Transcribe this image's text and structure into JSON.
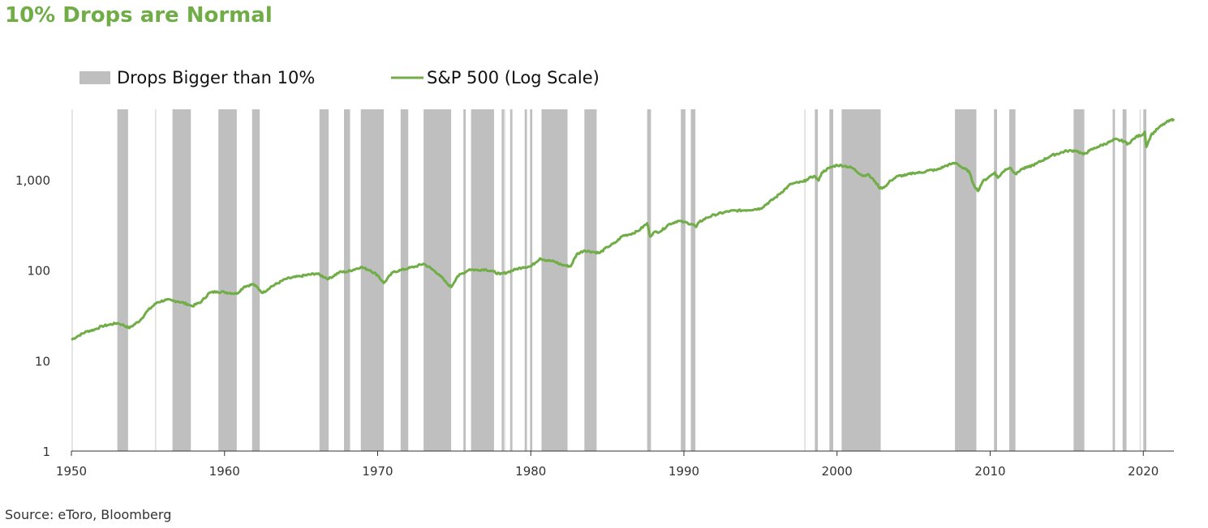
{
  "colors": {
    "title": "#70ad47",
    "line": "#70ad47",
    "band": "#bfbfbf",
    "axis": "#333333"
  },
  "chart_data": {
    "type": "line",
    "title": "10% Drops are Normal",
    "source": "Source: eToro, Bloomberg",
    "y_scale": "log",
    "xlim": [
      1950,
      2022
    ],
    "ylim": [
      1,
      6000
    ],
    "x_ticks": [
      1950,
      1960,
      1970,
      1980,
      1990,
      2000,
      2010,
      2020
    ],
    "x_tick_labels": [
      "1950",
      "1960",
      "1970",
      "1980",
      "1990",
      "2000",
      "2010",
      "2020"
    ],
    "y_ticks": [
      1,
      10,
      100,
      1000
    ],
    "y_tick_labels": [
      "1",
      "10",
      "100",
      "1,000"
    ],
    "grid": false,
    "legend_placement": "top-left",
    "legend": [
      {
        "label": "Drops Bigger than 10%",
        "kind": "band"
      },
      {
        "label": "S&P 500 (Log Scale)",
        "kind": "line"
      }
    ],
    "series": [
      {
        "name": "S&P 500 (Log Scale)",
        "x": [
          1950.0,
          1950.5,
          1951.0,
          1951.5,
          1952.0,
          1952.5,
          1953.0,
          1953.3,
          1953.8,
          1954.5,
          1955.0,
          1955.6,
          1956.2,
          1956.6,
          1957.0,
          1957.6,
          1957.9,
          1958.5,
          1959.0,
          1959.5,
          1960.0,
          1960.8,
          1961.3,
          1961.9,
          1962.5,
          1963.0,
          1964.0,
          1965.0,
          1966.0,
          1966.8,
          1967.5,
          1968.0,
          1968.9,
          1969.5,
          1970.0,
          1970.4,
          1971.0,
          1971.5,
          1972.0,
          1972.5,
          1973.0,
          1973.5,
          1974.0,
          1974.5,
          1974.8,
          1975.2,
          1976.0,
          1976.5,
          1977.0,
          1977.5,
          1978.0,
          1978.5,
          1979.0,
          1979.5,
          1980.0,
          1980.6,
          1980.9,
          1981.5,
          1982.0,
          1982.6,
          1983.0,
          1983.5,
          1984.0,
          1984.5,
          1985.0,
          1985.5,
          1986.0,
          1986.5,
          1987.0,
          1987.6,
          1987.8,
          1988.0,
          1988.5,
          1989.0,
          1989.6,
          1990.0,
          1990.6,
          1990.8,
          1991.0,
          1991.5,
          1992.0,
          1993.0,
          1994.0,
          1995.0,
          1996.0,
          1997.0,
          1997.8,
          1998.0,
          1998.5,
          1998.8,
          1999.0,
          1999.5,
          2000.0,
          2000.5,
          2001.0,
          2001.7,
          2002.0,
          2002.5,
          2002.8,
          2003.2,
          2003.5,
          2004.0,
          2004.5,
          2005.0,
          2005.5,
          2006.0,
          2006.5,
          2007.0,
          2007.5,
          2007.8,
          2008.2,
          2008.6,
          2008.9,
          2009.2,
          2009.5,
          2010.0,
          2010.3,
          2010.5,
          2011.0,
          2011.3,
          2011.7,
          2012.0,
          2012.5,
          2013.0,
          2014.0,
          2015.0,
          2015.6,
          2016.1,
          2016.5,
          2017.0,
          2018.0,
          2018.1,
          2018.8,
          2018.95,
          2019.5,
          2020.0,
          2020.1,
          2020.2,
          2020.5,
          2021.0,
          2021.5,
          2022.0
        ],
        "values": [
          17,
          19,
          21,
          22,
          24,
          25,
          26,
          25,
          23,
          28,
          36,
          44,
          47,
          46,
          45,
          42,
          40,
          45,
          56,
          58,
          57,
          55,
          66,
          70,
          56,
          65,
          80,
          86,
          92,
          80,
          95,
          96,
          108,
          100,
          88,
          72,
          95,
          100,
          105,
          110,
          118,
          104,
          90,
          72,
          65,
          85,
          102,
          100,
          102,
          97,
          90,
          95,
          102,
          108,
          110,
          135,
          130,
          125,
          115,
          110,
          150,
          165,
          160,
          155,
          180,
          200,
          240,
          250,
          270,
          330,
          235,
          260,
          270,
          320,
          350,
          340,
          320,
          300,
          340,
          380,
          410,
          450,
          460,
          480,
          640,
          900,
          950,
          1000,
          1100,
          980,
          1200,
          1350,
          1450,
          1420,
          1350,
          1100,
          1150,
          950,
          800,
          850,
          980,
          1100,
          1120,
          1190,
          1200,
          1270,
          1280,
          1400,
          1500,
          1530,
          1350,
          1250,
          900,
          750,
          950,
          1100,
          1200,
          1050,
          1300,
          1360,
          1150,
          1300,
          1380,
          1500,
          1850,
          2080,
          2100,
          1900,
          2100,
          2300,
          2700,
          2800,
          2650,
          2450,
          2950,
          3200,
          3380,
          2300,
          3100,
          3750,
          4300,
          4700
        ]
      }
    ],
    "drop_periods": [
      [
        1953.0,
        1953.7
      ],
      [
        1956.6,
        1957.8
      ],
      [
        1959.6,
        1960.8
      ],
      [
        1961.8,
        1962.3
      ],
      [
        1966.2,
        1966.8
      ],
      [
        1967.8,
        1968.2
      ],
      [
        1968.9,
        1970.4
      ],
      [
        1971.5,
        1972.0
      ],
      [
        1973.0,
        1974.8
      ],
      [
        1975.6,
        1975.75
      ],
      [
        1976.1,
        1977.6
      ],
      [
        1978.1,
        1978.25
      ],
      [
        1978.65,
        1978.8
      ],
      [
        1979.6,
        1979.75
      ],
      [
        1979.95,
        1980.1
      ],
      [
        1980.7,
        1982.4
      ],
      [
        1983.5,
        1984.3
      ],
      [
        1987.6,
        1987.85
      ],
      [
        1989.8,
        1990.1
      ],
      [
        1990.45,
        1990.75
      ],
      [
        1998.55,
        1998.75
      ],
      [
        1999.5,
        1999.75
      ],
      [
        2000.3,
        2002.85
      ],
      [
        2007.7,
        2009.1
      ],
      [
        2010.25,
        2010.45
      ],
      [
        2011.25,
        2011.65
      ],
      [
        2015.45,
        2016.15
      ],
      [
        2018.0,
        2018.15
      ],
      [
        2018.65,
        2018.9
      ],
      [
        2020.0,
        2020.2
      ]
    ],
    "faint_markers": [
      1950.05,
      1955.5,
      1978.3,
      1997.9,
      2019.8
    ]
  }
}
